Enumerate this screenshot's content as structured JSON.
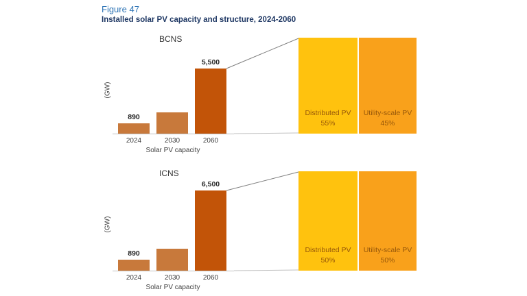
{
  "figure": {
    "label": "Figure 47",
    "title": "Installed solar PV capacity and structure, 2024-2060"
  },
  "chart_data": [
    {
      "type": "bar",
      "panel": "BCNS",
      "ylabel": "(GW)",
      "xlabel": "Solar PV capacity",
      "categories": [
        "2024",
        "2030",
        "2060"
      ],
      "values": [
        890,
        1800,
        5500
      ],
      "bar_labels": [
        "890",
        "",
        "5,500"
      ],
      "ylim": [
        0,
        5500
      ],
      "grid": false,
      "bar_colors": [
        "#C8793B",
        "#C8793B",
        "#C25408"
      ],
      "structure": {
        "type": "stacked-100pct",
        "segments": [
          {
            "label": "Distributed PV",
            "value": "55%",
            "color": "#FFC20E"
          },
          {
            "label": "Utility-scale PV",
            "value": "45%",
            "color": "#F9A11B"
          }
        ]
      }
    },
    {
      "type": "bar",
      "panel": "ICNS",
      "ylabel": "(GW)",
      "xlabel": "Solar PV capacity",
      "categories": [
        "2024",
        "2030",
        "2060"
      ],
      "values": [
        890,
        1800,
        6500
      ],
      "bar_labels": [
        "890",
        "",
        "6,500"
      ],
      "ylim": [
        0,
        6500
      ],
      "grid": false,
      "bar_colors": [
        "#C8793B",
        "#C8793B",
        "#C25408"
      ],
      "structure": {
        "type": "stacked-100pct",
        "segments": [
          {
            "label": "Distributed PV",
            "value": "50%",
            "color": "#FFC20E"
          },
          {
            "label": "Utility-scale PV",
            "value": "50%",
            "color": "#F9A11B"
          }
        ]
      }
    }
  ],
  "colors": {
    "figure_label": "#2E74B5",
    "figure_title": "#1F3864",
    "block_text": "#96570A",
    "axis_text": "#404040",
    "axis_line": "#BFBFBF"
  }
}
